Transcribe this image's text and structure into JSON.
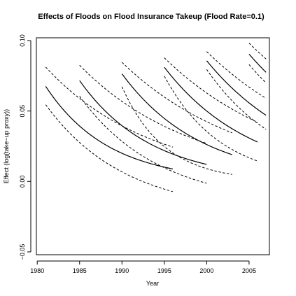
{
  "chart_data": {
    "type": "line",
    "title": "Effects of Floods on Flood Insurance Takeup (Flood Rate=0.1)",
    "xlabel": "Year",
    "ylabel": "Effect (log(take−up proxy))",
    "xlim": [
      1979.9,
      2007.4
    ],
    "ylim": [
      -0.052,
      0.102
    ],
    "x_ticks": [
      1980,
      1985,
      1990,
      1995,
      2000,
      2005
    ],
    "x_tick_labels": [
      "1980",
      "1985",
      "1990",
      "1995",
      "2000",
      "2005"
    ],
    "y_ticks": [
      -0.05,
      0.0,
      0.05,
      0.1
    ],
    "y_tick_labels": [
      "−0.05",
      "0.00",
      "0.05",
      "0.10"
    ],
    "grid": false,
    "legend": "none",
    "series": [
      {
        "start_year": 1981,
        "end_year": 1996,
        "estimate": [
          0.0675,
          0.0089
        ],
        "upper": [
          0.0812,
          0.0244
        ],
        "lower": [
          0.0545,
          -0.0072
        ]
      },
      {
        "start_year": 1985,
        "end_year": 2000,
        "estimate": [
          0.0716,
          0.0121
        ],
        "upper": [
          0.0825,
          0.027
        ],
        "lower": [
          0.0605,
          -0.0013
        ]
      },
      {
        "start_year": 1990,
        "end_year": 2003,
        "estimate": [
          0.0764,
          0.019
        ],
        "upper": [
          0.0846,
          0.0345
        ],
        "lower": [
          0.0673,
          0.005
        ]
      },
      {
        "start_year": 1995,
        "end_year": 2006,
        "estimate": [
          0.0811,
          0.028
        ],
        "upper": [
          0.0878,
          0.042
        ],
        "lower": [
          0.0748,
          0.0145
        ]
      },
      {
        "start_year": 2000,
        "end_year": 2007,
        "estimate": [
          0.0857,
          0.047
        ],
        "upper": [
          0.0922,
          0.059
        ],
        "lower": [
          0.0795,
          0.037
        ]
      },
      {
        "start_year": 2005,
        "end_year": 2007,
        "estimate": [
          0.0904,
          0.0775
        ],
        "upper": [
          0.0982,
          0.087
        ],
        "lower": [
          0.083,
          0.07
        ]
      }
    ]
  }
}
